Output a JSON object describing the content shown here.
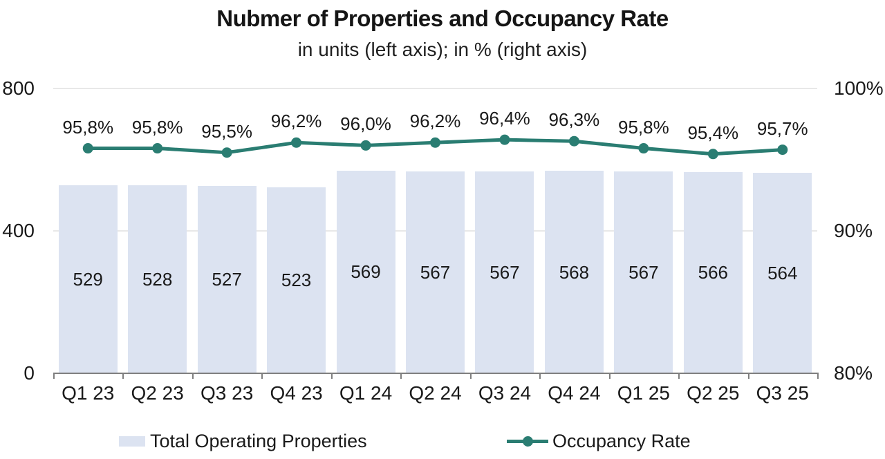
{
  "title": "Nubmer of Properties and Occupancy Rate",
  "subtitle": "in units (left axis); in % (right axis)",
  "colors": {
    "bar_fill": "#dce3f1",
    "line": "#2a7d72",
    "axis": "#7f7f7f",
    "gridline": "#e8e8e8",
    "text": "#1a1a1a"
  },
  "chart_data": {
    "type": "combo-bar-line",
    "categories": [
      "Q1 23",
      "Q2 23",
      "Q3 23",
      "Q4 23",
      "Q1 24",
      "Q2 24",
      "Q3 24",
      "Q4 24",
      "Q1 25",
      "Q2 25",
      "Q3 25"
    ],
    "series": [
      {
        "name": "Total Operating Properties",
        "type": "bar",
        "axis": "left",
        "values": [
          529,
          528,
          527,
          523,
          569,
          567,
          567,
          568,
          567,
          566,
          564
        ],
        "color": "#dce3f1"
      },
      {
        "name": "Occupancy Rate",
        "type": "line",
        "axis": "right",
        "values": [
          95.8,
          95.8,
          95.5,
          96.2,
          96.0,
          96.2,
          96.4,
          96.3,
          95.8,
          95.4,
          95.7
        ],
        "value_labels": [
          "95,8%",
          "95,8%",
          "95,5%",
          "96,2%",
          "96,0%",
          "96,2%",
          "96,4%",
          "96,3%",
          "95,8%",
          "95,4%",
          "95,7%"
        ],
        "color": "#2a7d72"
      }
    ],
    "left_axis": {
      "range": [
        0,
        800
      ],
      "ticks": [
        0,
        400,
        800
      ],
      "tick_labels": [
        "0",
        "400",
        "800"
      ]
    },
    "right_axis": {
      "range": [
        80,
        100
      ],
      "ticks": [
        80,
        90,
        100
      ],
      "tick_labels": [
        "80%",
        "90%",
        "100%"
      ]
    },
    "grid": true,
    "legend_position": "bottom"
  },
  "legend": {
    "items": [
      {
        "label": "Total Operating Properties",
        "swatch": "bar"
      },
      {
        "label": "Occupancy Rate",
        "swatch": "line"
      }
    ]
  }
}
